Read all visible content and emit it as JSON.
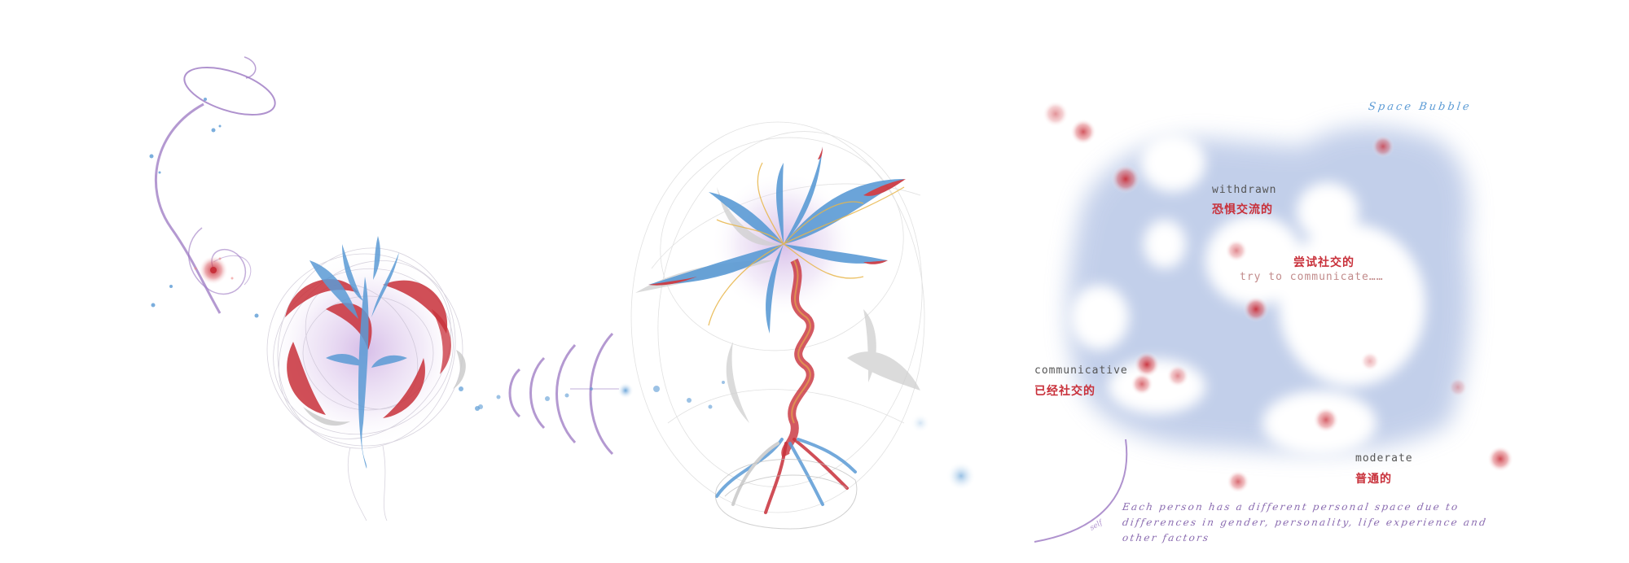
{
  "colors": {
    "background": "#ffffff",
    "red": "#c8303a",
    "blue": "#5b9bd5",
    "purple": "#9b77c2",
    "bubble": "#9bb0dd",
    "gray": "#cfcfcf",
    "gold": "#e8b64a",
    "label_gray": "#555555"
  },
  "illustrations": [
    "spiral-orbit-sprite",
    "heart-flower-sphere",
    "signal-wave-arcs",
    "blossoming-tree-flower",
    "space-bubble-field"
  ],
  "space_bubble": {
    "title": "Space Bubble",
    "labels": [
      {
        "en": "withdrawn",
        "cn": "恐惧交流的"
      },
      {
        "en": "try to communicate……",
        "cn": "尝试社交的"
      },
      {
        "en": "communicative",
        "cn": "已经社交的"
      },
      {
        "en": "moderate",
        "cn": "普通的"
      }
    ],
    "note_lines": [
      "Each person has a different personal space due to",
      "differences in gender, personality, life experience and",
      "other factors"
    ],
    "mini_mark": "self"
  }
}
